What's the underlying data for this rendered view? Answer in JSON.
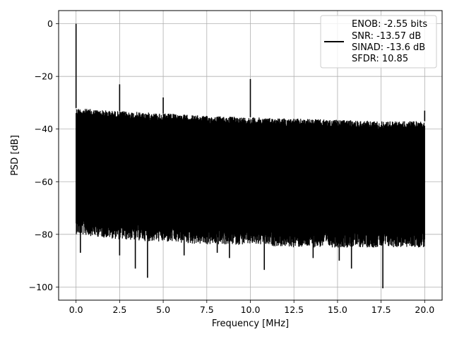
{
  "chart_data": {
    "type": "line",
    "xlabel": "Frequency [MHz]",
    "ylabel": "PSD [dB]",
    "xlim": [
      -1.0,
      21.0
    ],
    "ylim": [
      -105,
      5
    ],
    "x_ticks": [
      0.0,
      2.5,
      5.0,
      7.5,
      10.0,
      12.5,
      15.0,
      17.5,
      20.0
    ],
    "x_tick_labels": [
      "0.0",
      "2.5",
      "5.0",
      "7.5",
      "10.0",
      "12.5",
      "15.0",
      "17.5",
      "20.0"
    ],
    "y_ticks": [
      0,
      -20,
      -40,
      -60,
      -80,
      -100
    ],
    "y_tick_labels": [
      "0",
      "−20",
      "−40",
      "−60",
      "−80",
      "−100"
    ],
    "grid": true,
    "line_color": "#000000",
    "legend_position": "top-right",
    "legend_lines": [
      "ENOB: -2.55 bits",
      "SNR: -13.57 dB",
      "SINAD: -13.6 dB",
      "SFDR: 10.85"
    ],
    "x_range": [
      0.0,
      20.0
    ],
    "noise_floor_upper_db": [
      [
        0.0,
        -32
      ],
      [
        2.0,
        -33
      ],
      [
        5.0,
        -34
      ],
      [
        7.5,
        -35
      ],
      [
        10.0,
        -35.5
      ],
      [
        12.5,
        -36
      ],
      [
        15.0,
        -36.5
      ],
      [
        17.5,
        -37
      ],
      [
        20.0,
        -37
      ]
    ],
    "noise_floor_lower_db": [
      [
        0.0,
        -74
      ],
      [
        2.5,
        -76
      ],
      [
        5.0,
        -77
      ],
      [
        7.5,
        -78
      ],
      [
        10.0,
        -78
      ],
      [
        12.5,
        -79
      ],
      [
        15.0,
        -79
      ],
      [
        17.5,
        -79
      ],
      [
        20.0,
        -79
      ]
    ],
    "peaks": [
      {
        "x": 0.0,
        "y": 0
      },
      {
        "x": 2.5,
        "y": -23
      },
      {
        "x": 5.0,
        "y": -28
      },
      {
        "x": 10.0,
        "y": -21
      },
      {
        "x": 20.0,
        "y": -33
      }
    ],
    "dips": [
      {
        "x": 0.25,
        "y": -87
      },
      {
        "x": 2.5,
        "y": -88
      },
      {
        "x": 3.4,
        "y": -93
      },
      {
        "x": 4.1,
        "y": -96.5
      },
      {
        "x": 6.2,
        "y": -88
      },
      {
        "x": 8.1,
        "y": -87
      },
      {
        "x": 8.8,
        "y": -89
      },
      {
        "x": 10.8,
        "y": -93.5
      },
      {
        "x": 13.6,
        "y": -89
      },
      {
        "x": 15.1,
        "y": -90
      },
      {
        "x": 15.8,
        "y": -93
      },
      {
        "x": 17.6,
        "y": -100.5
      }
    ]
  }
}
